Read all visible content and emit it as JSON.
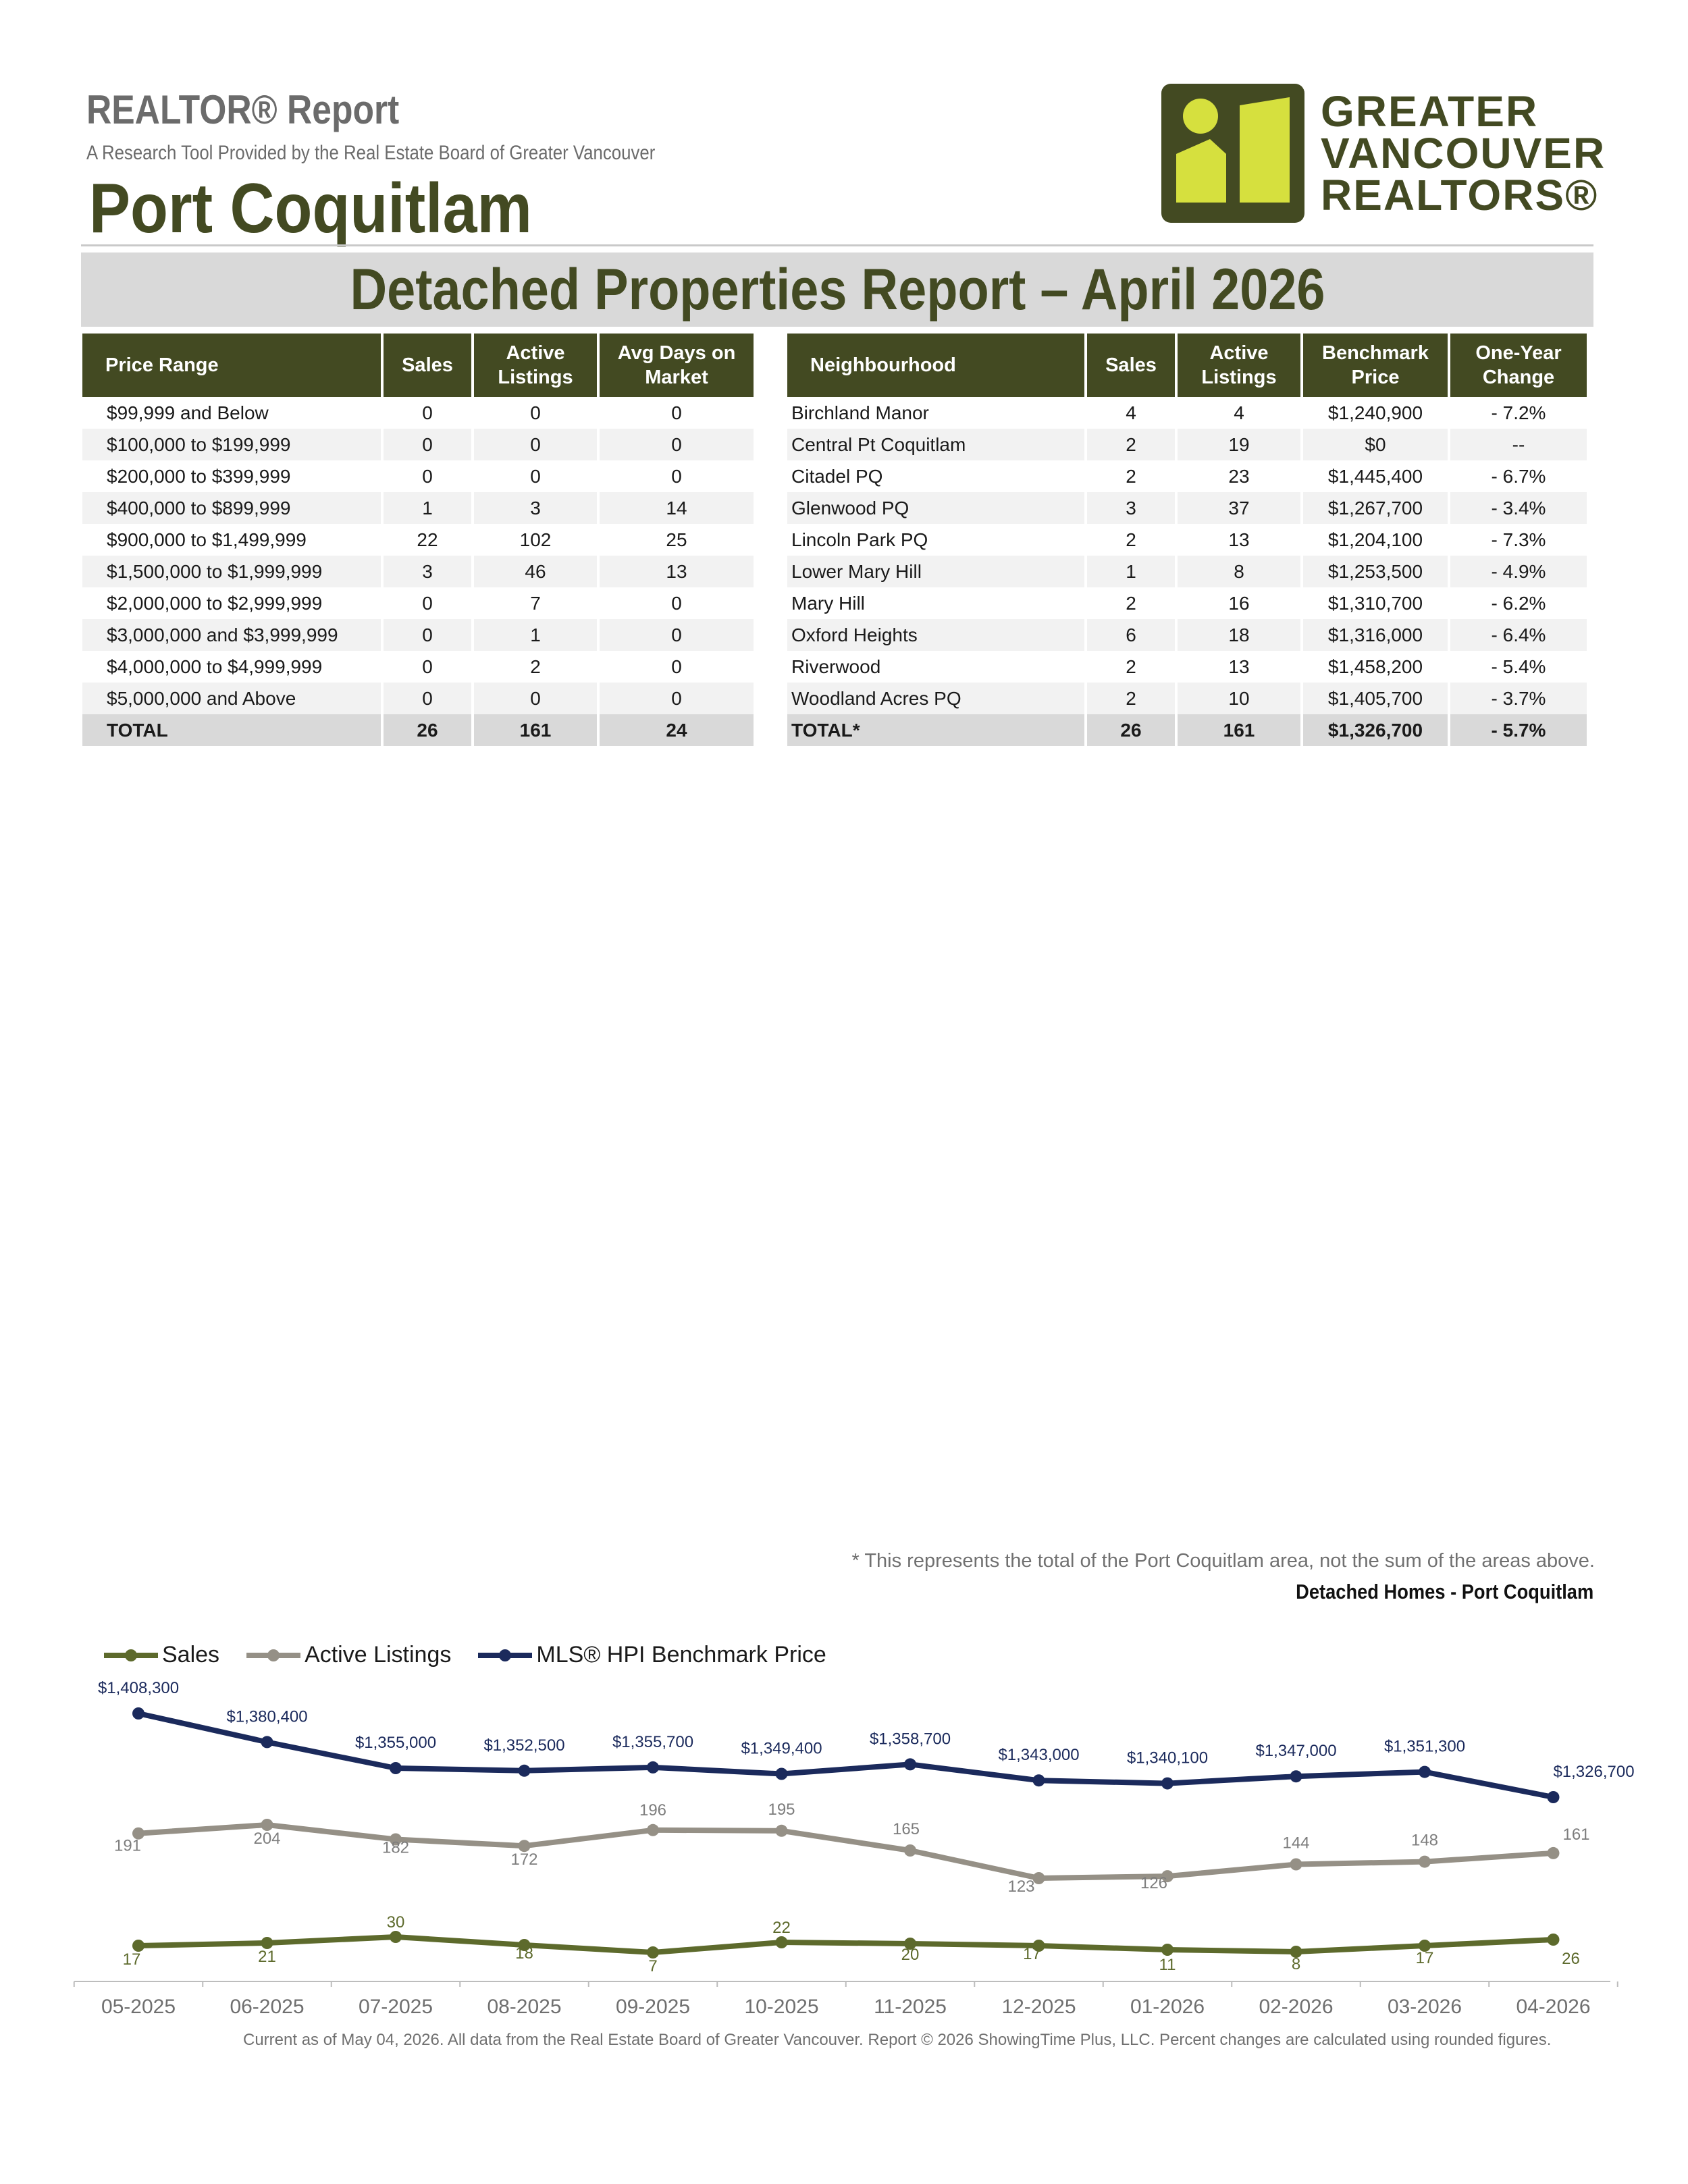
{
  "header": {
    "report_title": "REALTOR® Report",
    "subtitle": "A Research Tool Provided by the Real Estate Board of Greater Vancouver",
    "area": "Port Coquitlam",
    "logo_lines": [
      "GREATER",
      "VANCOUVER",
      "REALTORS®"
    ]
  },
  "banner": "Detached Properties Report – April 2026",
  "price_table": {
    "headers": [
      "Price Range",
      "Sales",
      "Active Listings",
      "Avg Days on Market"
    ],
    "rows": [
      [
        "$99,999 and Below",
        "0",
        "0",
        "0"
      ],
      [
        "$100,000 to $199,999",
        "0",
        "0",
        "0"
      ],
      [
        "$200,000 to $399,999",
        "0",
        "0",
        "0"
      ],
      [
        "$400,000 to $899,999",
        "1",
        "3",
        "14"
      ],
      [
        "$900,000 to $1,499,999",
        "22",
        "102",
        "25"
      ],
      [
        "$1,500,000 to $1,999,999",
        "3",
        "46",
        "13"
      ],
      [
        "$2,000,000 to $2,999,999",
        "0",
        "7",
        "0"
      ],
      [
        "$3,000,000 and $3,999,999",
        "0",
        "1",
        "0"
      ],
      [
        "$4,000,000 to $4,999,999",
        "0",
        "2",
        "0"
      ],
      [
        "$5,000,000 and Above",
        "0",
        "0",
        "0"
      ]
    ],
    "total": [
      "TOTAL",
      "26",
      "161",
      "24"
    ]
  },
  "neighbourhood_table": {
    "headers": [
      "Neighbourhood",
      "Sales",
      "Active Listings",
      "Benchmark Price",
      "One-Year Change"
    ],
    "rows": [
      [
        "Birchland Manor",
        "4",
        "4",
        "$1,240,900",
        "- 7.2%"
      ],
      [
        "Central Pt Coquitlam",
        "2",
        "19",
        "$0",
        "--"
      ],
      [
        "Citadel PQ",
        "2",
        "23",
        "$1,445,400",
        "- 6.7%"
      ],
      [
        "Glenwood PQ",
        "3",
        "37",
        "$1,267,700",
        "- 3.4%"
      ],
      [
        "Lincoln Park PQ",
        "2",
        "13",
        "$1,204,100",
        "- 7.3%"
      ],
      [
        "Lower Mary Hill",
        "1",
        "8",
        "$1,253,500",
        "- 4.9%"
      ],
      [
        "Mary Hill",
        "2",
        "16",
        "$1,310,700",
        "- 6.2%"
      ],
      [
        "Oxford Heights",
        "6",
        "18",
        "$1,316,000",
        "- 6.4%"
      ],
      [
        "Riverwood",
        "2",
        "13",
        "$1,458,200",
        "- 5.4%"
      ],
      [
        "Woodland Acres PQ",
        "2",
        "10",
        "$1,405,700",
        "- 3.7%"
      ]
    ],
    "total": [
      "TOTAL*",
      "26",
      "161",
      "$1,326,700",
      "- 5.7%"
    ]
  },
  "footnote": "* This represents the total of the Port Coquitlam area, not the sum of the areas above.",
  "chart_data": {
    "type": "line",
    "title": "Detached Homes - Port Coquitlam",
    "x": [
      "05-2025",
      "06-2025",
      "07-2025",
      "08-2025",
      "09-2025",
      "10-2025",
      "11-2025",
      "12-2025",
      "01-2026",
      "02-2026",
      "03-2026",
      "04-2026"
    ],
    "series": [
      {
        "name": "Sales",
        "color": "#5d6a2c",
        "values": [
          17,
          21,
          30,
          18,
          7,
          22,
          20,
          17,
          11,
          8,
          17,
          26
        ],
        "labels": [
          "17",
          "21",
          "30",
          "18",
          "7",
          "22",
          "20",
          "17",
          "11",
          "8",
          "17",
          "26"
        ]
      },
      {
        "name": "Active Listings",
        "color": "#959086",
        "values": [
          191,
          204,
          182,
          172,
          196,
          195,
          165,
          123,
          126,
          144,
          148,
          161
        ],
        "labels": [
          "191",
          "204",
          "182",
          "172",
          "196",
          "195",
          "165",
          "123",
          "126",
          "144",
          "148",
          "161"
        ]
      },
      {
        "name": "MLS® HPI Benchmark Price",
        "color": "#1b2a5c",
        "values": [
          1408300,
          1380400,
          1355000,
          1352500,
          1355700,
          1349400,
          1358700,
          1343000,
          1340100,
          1347000,
          1351300,
          1326700
        ],
        "labels": [
          "$1,408,300",
          "$1,380,400",
          "$1,355,000",
          "$1,352,500",
          "$1,355,700",
          "$1,349,400",
          "$1,358,700",
          "$1,343,000",
          "$1,340,100",
          "$1,347,000",
          "$1,351,300",
          "$1,326,700"
        ]
      }
    ],
    "legend_position": "top-left",
    "grid": false
  },
  "credit": "Current as of May 04, 2026. All data from the Real Estate Board of Greater Vancouver.  Report © 2026 ShowingTime Plus, LLC. Percent changes are calculated using rounded figures."
}
